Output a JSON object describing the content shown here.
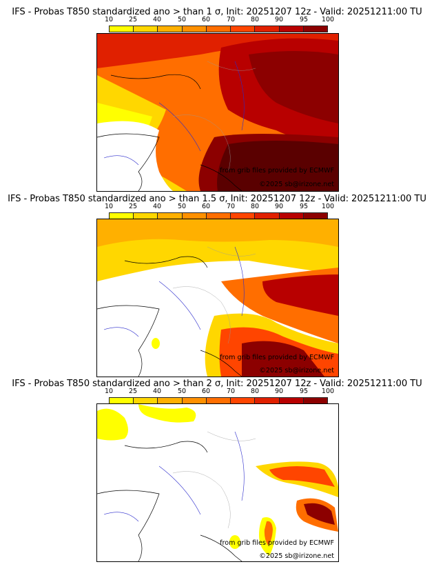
{
  "colorbar": {
    "ticks": [
      "10",
      "25",
      "40",
      "50",
      "60",
      "70",
      "80",
      "90",
      "95",
      "100"
    ],
    "colors": [
      "#ffff00",
      "#ffd700",
      "#ffb000",
      "#ff9000",
      "#ff6e00",
      "#ff4500",
      "#e02000",
      "#b80000",
      "#8c0000",
      "#5a0000"
    ]
  },
  "panels": [
    {
      "title": "IFS - Probas T850  standardized ano > than 1 σ, Init: 20251207 12z - Valid: 20251211:00 TU",
      "credit": "from grib files provided by ECMWF",
      "copyright": "©2025 sb@irizone.net",
      "sigma": 1
    },
    {
      "title": "IFS - Probas T850  standardized ano > than 1.5 σ, Init: 20251207 12z - Valid: 20251211:00 TU",
      "credit": "from grib files provided by ECMWF",
      "copyright": "©2025 sb@irizone.net",
      "sigma": 1.5
    },
    {
      "title": "IFS - Probas T850  standardized ano > than 2 σ, Init: 20251207 12z - Valid: 20251211:00 TU",
      "credit": "from grib files provided by ECMWF",
      "copyright": "©2025 sb@irizone.net",
      "sigma": 2
    }
  ]
}
